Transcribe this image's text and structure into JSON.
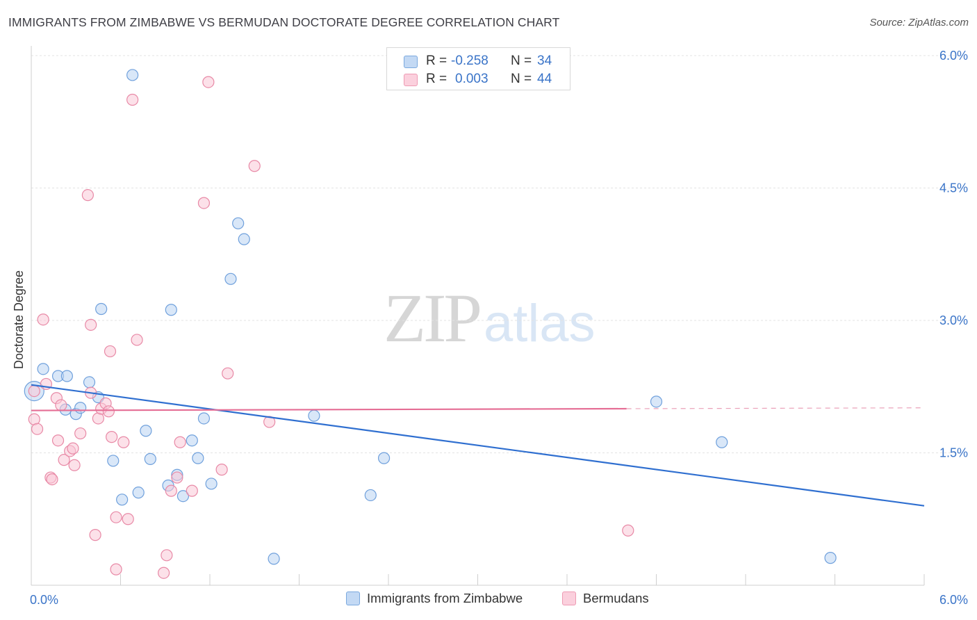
{
  "header": {
    "title": "IMMIGRANTS FROM ZIMBABWE VS BERMUDAN DOCTORATE DEGREE CORRELATION CHART",
    "source": "Source: ZipAtlas.com"
  },
  "watermark": {
    "zip": "ZIP",
    "atlas": "atlas"
  },
  "legend": {
    "r_label": "R =",
    "n_label": "N =",
    "rows": [
      {
        "r": "-0.258",
        "n": "34",
        "color": "#a8c8f0"
      },
      {
        "r": "0.003",
        "n": "44",
        "color": "#f7b8cb"
      }
    ]
  },
  "chart_data": {
    "type": "scatter",
    "xlim": [
      0,
      6
    ],
    "ylim": [
      0,
      6
    ],
    "ylabel": "Doctorate Degree",
    "x_tick_labels": [
      "0.0%",
      "6.0%"
    ],
    "y_tick_labels": [
      "1.5%",
      "3.0%",
      "4.5%",
      "6.0%"
    ],
    "y_ticks": [
      1.5,
      3.0,
      4.5,
      6.0
    ],
    "grid": true,
    "legend_position": "top-center",
    "series": [
      {
        "name": "Immigrants from Zimbabwe",
        "color": "#6fa0dc",
        "fill": "#b9d3f3",
        "trend": {
          "x": [
            0,
            6
          ],
          "y": [
            2.27,
            0.9
          ]
        },
        "points": [
          [
            0.02,
            2.2
          ],
          [
            0.08,
            2.45
          ],
          [
            0.18,
            2.37
          ],
          [
            0.24,
            2.37
          ],
          [
            0.23,
            1.99
          ],
          [
            0.3,
            1.94
          ],
          [
            0.33,
            2.01
          ],
          [
            0.39,
            2.3
          ],
          [
            0.45,
            2.13
          ],
          [
            0.47,
            3.13
          ],
          [
            0.55,
            1.41
          ],
          [
            0.61,
            0.97
          ],
          [
            0.68,
            5.78
          ],
          [
            0.72,
            1.05
          ],
          [
            0.77,
            1.75
          ],
          [
            0.8,
            1.43
          ],
          [
            0.92,
            1.13
          ],
          [
            0.94,
            3.12
          ],
          [
            0.98,
            1.25
          ],
          [
            1.02,
            1.01
          ],
          [
            1.08,
            1.64
          ],
          [
            1.12,
            1.44
          ],
          [
            1.16,
            1.89
          ],
          [
            1.21,
            1.15
          ],
          [
            1.34,
            3.47
          ],
          [
            1.39,
            4.1
          ],
          [
            1.43,
            3.92
          ],
          [
            1.63,
            0.3
          ],
          [
            1.9,
            1.92
          ],
          [
            2.28,
            1.02
          ],
          [
            2.37,
            1.44
          ],
          [
            4.2,
            2.08
          ],
          [
            4.64,
            1.62
          ],
          [
            5.37,
            0.31
          ]
        ]
      },
      {
        "name": "Bermudans",
        "color": "#e889a6",
        "fill": "#f9c9d7",
        "trend": {
          "x": [
            0,
            4.0
          ],
          "y": [
            1.98,
            2.0
          ]
        },
        "trend_dashed": {
          "x": [
            4.0,
            6
          ],
          "y": [
            2.0,
            2.01
          ]
        },
        "points": [
          [
            0.02,
            1.88
          ],
          [
            0.04,
            1.77
          ],
          [
            0.08,
            3.01
          ],
          [
            0.1,
            2.28
          ],
          [
            0.13,
            1.22
          ],
          [
            0.14,
            1.2
          ],
          [
            0.17,
            2.12
          ],
          [
            0.18,
            1.64
          ],
          [
            0.2,
            2.04
          ],
          [
            0.22,
            1.42
          ],
          [
            0.26,
            1.52
          ],
          [
            0.28,
            1.55
          ],
          [
            0.29,
            1.36
          ],
          [
            0.33,
            1.72
          ],
          [
            0.38,
            4.42
          ],
          [
            0.4,
            2.95
          ],
          [
            0.4,
            2.18
          ],
          [
            0.43,
            0.57
          ],
          [
            0.45,
            1.89
          ],
          [
            0.47,
            2.0
          ],
          [
            0.5,
            2.06
          ],
          [
            0.52,
            1.97
          ],
          [
            0.54,
            1.68
          ],
          [
            0.57,
            0.18
          ],
          [
            0.57,
            0.77
          ],
          [
            0.53,
            2.65
          ],
          [
            0.62,
            1.62
          ],
          [
            0.65,
            0.75
          ],
          [
            0.68,
            5.5
          ],
          [
            0.71,
            2.78
          ],
          [
            0.89,
            0.14
          ],
          [
            0.91,
            0.34
          ],
          [
            0.94,
            1.07
          ],
          [
            0.98,
            1.22
          ],
          [
            1.0,
            1.62
          ],
          [
            1.08,
            1.07
          ],
          [
            1.16,
            4.33
          ],
          [
            1.19,
            5.7
          ],
          [
            1.28,
            1.31
          ],
          [
            1.32,
            2.4
          ],
          [
            1.5,
            4.75
          ],
          [
            1.6,
            1.85
          ],
          [
            4.01,
            0.62
          ],
          [
            0.02,
            2.2
          ]
        ]
      }
    ]
  }
}
